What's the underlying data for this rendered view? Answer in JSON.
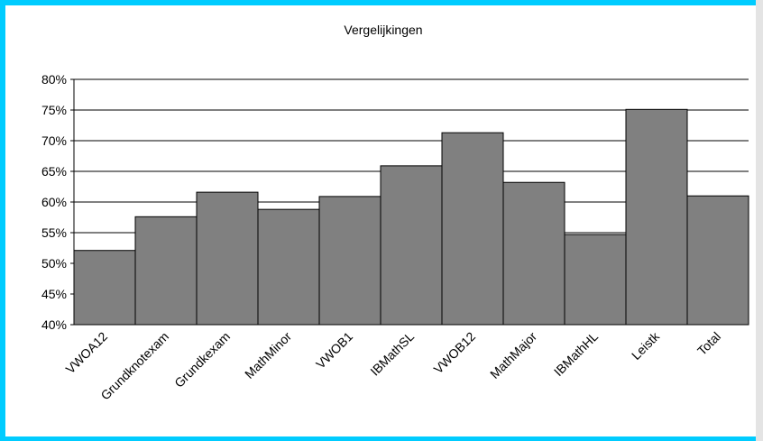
{
  "chart_data": {
    "type": "bar",
    "title": "Vergelijkingen",
    "categories": [
      "VWOA12",
      "Grundknotexam",
      "Grundkexam",
      "MathMinor",
      "VWOB1",
      "IBMathSL",
      "VWOB12",
      "MathMajor",
      "IBMathHL",
      "Leistk",
      "Total"
    ],
    "values": [
      52.1,
      57.6,
      61.6,
      58.8,
      60.9,
      65.9,
      71.3,
      63.2,
      54.7,
      75.1,
      61.0
    ],
    "color": "#808080",
    "ylim": [
      40,
      80
    ],
    "yticks": [
      {
        "value": 40,
        "label": "40%"
      },
      {
        "value": 45,
        "label": "45%"
      },
      {
        "value": 50,
        "label": "50%"
      },
      {
        "value": 55,
        "label": "55%"
      },
      {
        "value": 60,
        "label": "60%"
      },
      {
        "value": 65,
        "label": "65%"
      },
      {
        "value": 70,
        "label": "70%"
      },
      {
        "value": 75,
        "label": "75%"
      },
      {
        "value": 80,
        "label": "80%"
      }
    ],
    "grid": true
  }
}
